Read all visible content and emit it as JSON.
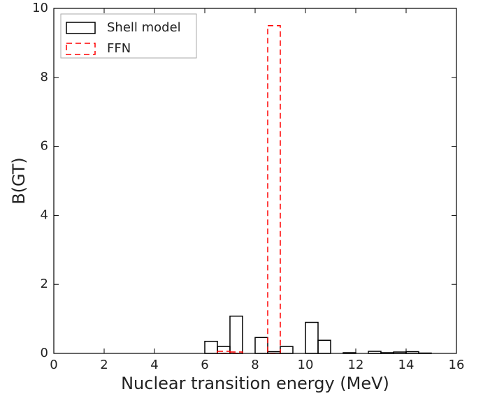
{
  "chart_data": {
    "type": "histogram",
    "xlabel": "Nuclear transition energy (MeV)",
    "ylabel": "B(GT)",
    "bins": [
      0,
      0.5,
      1,
      1.5,
      2,
      2.5,
      3,
      3.5,
      4,
      4.5,
      5,
      5.5,
      6,
      6.5,
      7,
      7.5,
      8,
      8.5,
      9,
      9.5,
      10,
      10.5,
      11,
      11.5,
      12,
      12.5,
      13,
      13.5,
      14,
      14.5,
      15
    ],
    "series": [
      {
        "name": "Shell model",
        "color": "#000000",
        "dashed": false,
        "values": [
          0,
          0,
          0,
          0,
          0,
          0,
          0,
          0,
          0,
          0,
          0,
          0,
          0.35,
          0.2,
          1.08,
          0,
          0.46,
          0.05,
          0.2,
          0,
          0.9,
          0.38,
          0,
          0.02,
          0,
          0.06,
          0.02,
          0.04,
          0.05,
          0.01
        ]
      },
      {
        "name": "FFN",
        "color": "#ff0000",
        "dashed": true,
        "values": [
          0,
          0,
          0,
          0,
          0,
          0,
          0,
          0,
          0,
          0,
          0,
          0,
          0,
          0.06,
          0.04,
          0,
          0,
          9.5,
          0,
          0,
          0,
          0,
          0,
          0,
          0,
          0,
          0,
          0,
          0,
          0
        ]
      }
    ],
    "xlim": [
      0,
      16
    ],
    "xticks": [
      0,
      2,
      4,
      6,
      8,
      10,
      12,
      14,
      16
    ],
    "ylim": [
      0,
      10
    ],
    "yticks": [
      0,
      2,
      4,
      6,
      8,
      10
    ],
    "legend": "upper left"
  }
}
